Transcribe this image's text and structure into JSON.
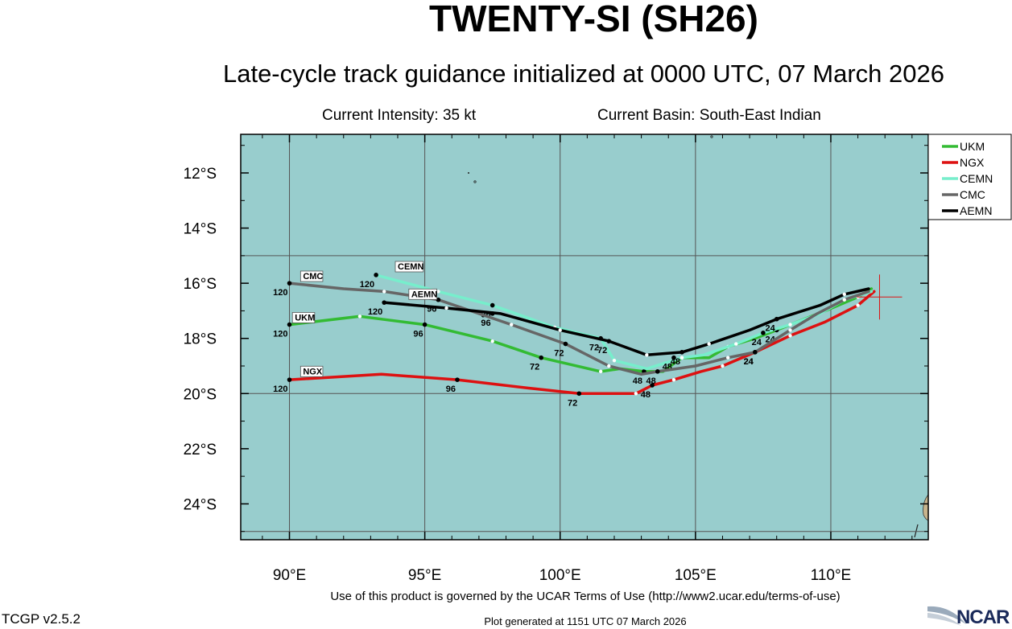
{
  "header": {
    "title": "TWENTY-SI (SH26)",
    "subtitle": "Late-cycle track guidance initialized at 0000 UTC, 07 March 2026",
    "intensity": "Current Intensity: 35 kt",
    "basin": "Current Basin: South-East Indian"
  },
  "footer": {
    "terms": "Use of this product is governed by the UCAR Terms of Use (http://www2.ucar.edu/terms-of-use)",
    "version": "TCGP v2.5.2",
    "generated": "Plot generated at 1151 UTC   07 March 2026",
    "logo": "NCAR"
  },
  "colors": {
    "ocean": "#98cdcd",
    "land": "#c8b48c",
    "grid": "#555555",
    "UKM": "#33bb33",
    "NGX": "#dd1111",
    "CEMN": "#77eecc",
    "CMC": "#666666",
    "AEMN": "#000000"
  },
  "chart_data": {
    "type": "line",
    "xlim": [
      88.2,
      113.6
    ],
    "ylim": [
      -25.3,
      -10.6
    ],
    "x_ticks": [
      90,
      95,
      100,
      105,
      110
    ],
    "x_tick_labels": [
      "90°E",
      "95°E",
      "100°E",
      "105°E",
      "110°E"
    ],
    "y_ticks": [
      -12,
      -14,
      -16,
      -18,
      -20,
      -22,
      -24
    ],
    "y_tick_labels": [
      "12°S",
      "14°S",
      "16°S",
      "18°S",
      "20°S",
      "22°S",
      "24°S"
    ],
    "grid_lines_lon": [
      90,
      95,
      100,
      105,
      110
    ],
    "grid_lines_lat": [
      -15,
      -20,
      -25
    ],
    "legend": [
      "UKM",
      "NGX",
      "CEMN",
      "CMC",
      "AEMN"
    ],
    "legend_position": "top-right",
    "current_position": {
      "lon": 111.8,
      "lat": -16.5
    },
    "series": [
      {
        "name": "UKM",
        "points": [
          [
            111.5,
            -16.2
          ],
          [
            111.0,
            -16.5
          ],
          [
            109.8,
            -17.0
          ],
          [
            108.0,
            -17.7
          ],
          [
            107.2,
            -18.0
          ],
          [
            106.2,
            -18.3
          ],
          [
            105.5,
            -18.7
          ],
          [
            104.5,
            -18.7
          ],
          [
            103.8,
            -19.2
          ],
          [
            103.1,
            -19.2
          ],
          [
            102.2,
            -19.1
          ],
          [
            101.5,
            -19.2
          ],
          [
            99.3,
            -18.7
          ],
          [
            97.5,
            -18.1
          ],
          [
            95.0,
            -17.5
          ],
          [
            92.6,
            -17.2
          ],
          [
            90.0,
            -17.5
          ]
        ],
        "labels": [
          {
            "text": "24",
            "lon": 108.0,
            "lat": -17.7
          },
          {
            "text": "48",
            "lon": 103.1,
            "lat": -19.2
          },
          {
            "text": "72",
            "lon": 99.3,
            "lat": -18.7
          },
          {
            "text": "96",
            "lon": 95.0,
            "lat": -17.5
          },
          {
            "text": "120",
            "lon": 90.0,
            "lat": -17.5
          }
        ],
        "end_label": {
          "text": "UKM",
          "lon": 90.2,
          "lat": -17.35
        }
      },
      {
        "name": "NGX",
        "points": [
          [
            111.6,
            -16.3
          ],
          [
            111.0,
            -16.8
          ],
          [
            109.8,
            -17.4
          ],
          [
            108.5,
            -17.9
          ],
          [
            107.2,
            -18.5
          ],
          [
            106.0,
            -19.0
          ],
          [
            105.2,
            -19.2
          ],
          [
            104.2,
            -19.5
          ],
          [
            103.4,
            -19.7
          ],
          [
            102.8,
            -20.0
          ],
          [
            101.5,
            -20.0
          ],
          [
            100.7,
            -20.0
          ],
          [
            98.8,
            -19.8
          ],
          [
            96.2,
            -19.5
          ],
          [
            93.4,
            -19.3
          ],
          [
            90.0,
            -19.5
          ]
        ],
        "labels": [
          {
            "text": "24",
            "lon": 107.2,
            "lat": -18.5
          },
          {
            "text": "48",
            "lon": 103.4,
            "lat": -19.7
          },
          {
            "text": "72",
            "lon": 100.7,
            "lat": -20.0
          },
          {
            "text": "96",
            "lon": 96.2,
            "lat": -19.5
          },
          {
            "text": "120",
            "lon": 90.0,
            "lat": -19.5
          }
        ],
        "end_label": {
          "text": "NGX",
          "lon": 90.5,
          "lat": -19.3
        }
      },
      {
        "name": "CEMN",
        "points": [
          [
            111.5,
            -16.3
          ],
          [
            110.5,
            -16.6
          ],
          [
            109.6,
            -17.1
          ],
          [
            108.5,
            -17.5
          ],
          [
            107.5,
            -17.8
          ],
          [
            106.5,
            -18.2
          ],
          [
            105.3,
            -18.6
          ],
          [
            104.5,
            -18.7
          ],
          [
            103.2,
            -19.1
          ],
          [
            102.0,
            -18.8
          ],
          [
            101.5,
            -18.0
          ],
          [
            99.8,
            -17.6
          ],
          [
            97.5,
            -16.8
          ],
          [
            95.5,
            -16.3
          ],
          [
            93.2,
            -15.7
          ]
        ],
        "labels": [
          {
            "text": "24",
            "lon": 107.5,
            "lat": -17.8
          },
          {
            "text": "48",
            "lon": 104.2,
            "lat": -18.7
          },
          {
            "text": "72",
            "lon": 101.5,
            "lat": -18.0
          },
          {
            "text": "96",
            "lon": 97.5,
            "lat": -16.8
          },
          {
            "text": "120",
            "lon": 93.2,
            "lat": -15.7
          }
        ],
        "end_label": {
          "text": "CEMN",
          "lon": 94.0,
          "lat": -15.5
        }
      },
      {
        "name": "CMC",
        "points": [
          [
            111.4,
            -16.3
          ],
          [
            110.5,
            -16.6
          ],
          [
            109.5,
            -17.1
          ],
          [
            108.5,
            -17.7
          ],
          [
            107.2,
            -18.5
          ],
          [
            106.2,
            -18.7
          ],
          [
            105.0,
            -19.0
          ],
          [
            103.6,
            -19.2
          ],
          [
            103.0,
            -19.3
          ],
          [
            101.8,
            -19.0
          ],
          [
            100.2,
            -18.2
          ],
          [
            98.2,
            -17.5
          ],
          [
            95.5,
            -16.6
          ],
          [
            93.5,
            -16.3
          ],
          [
            92.0,
            -16.2
          ],
          [
            90.0,
            -16.0
          ]
        ],
        "labels": [
          {
            "text": "24",
            "lon": 107.2,
            "lat": -18.5
          },
          {
            "text": "48",
            "lon": 103.6,
            "lat": -19.2
          },
          {
            "text": "72",
            "lon": 100.2,
            "lat": -18.2
          },
          {
            "text": "96",
            "lon": 95.5,
            "lat": -16.6
          },
          {
            "text": "120",
            "lon": 90.0,
            "lat": -16.0
          }
        ],
        "end_label": {
          "text": "CMC",
          "lon": 90.5,
          "lat": -15.85
        }
      },
      {
        "name": "AEMN",
        "points": [
          [
            111.4,
            -16.2
          ],
          [
            110.5,
            -16.4
          ],
          [
            109.6,
            -16.8
          ],
          [
            108.0,
            -17.3
          ],
          [
            107.0,
            -17.7
          ],
          [
            105.5,
            -18.2
          ],
          [
            104.5,
            -18.5
          ],
          [
            103.2,
            -18.6
          ],
          [
            101.8,
            -18.1
          ],
          [
            100.0,
            -17.7
          ],
          [
            97.8,
            -17.1
          ],
          [
            95.8,
            -16.9
          ],
          [
            93.5,
            -16.7
          ]
        ],
        "labels": [
          {
            "text": "24",
            "lon": 108.0,
            "lat": -17.3
          },
          {
            "text": "48",
            "lon": 104.5,
            "lat": -18.5
          },
          {
            "text": "72",
            "lon": 101.8,
            "lat": -18.1
          },
          {
            "text": "96",
            "lon": 97.5,
            "lat": -17.1
          },
          {
            "text": "120",
            "lon": 93.5,
            "lat": -16.7
          }
        ],
        "end_label": {
          "text": "AEMN",
          "lon": 94.5,
          "lat": -16.5
        }
      }
    ]
  }
}
